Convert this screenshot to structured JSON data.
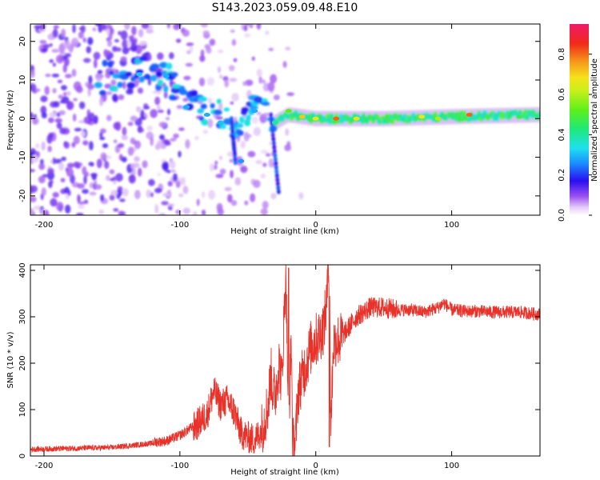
{
  "title": "S143.2023.059.09.48.E10",
  "chart_data": [
    {
      "type": "heatmap",
      "xlabel": "Height of straight line (km)",
      "ylabel": "Frequency (Hz)",
      "xlim": [
        -210,
        165
      ],
      "ylim": [
        -25,
        24.5
      ],
      "xticks": [
        -200,
        -100,
        0,
        100
      ],
      "yticks": [
        -20,
        -10,
        0,
        10,
        20
      ],
      "colorbar": {
        "label": "Normalized spectral amplitude",
        "range": [
          0,
          0.95
        ],
        "ticks": [
          0.0,
          0.2,
          0.4,
          0.6,
          0.8
        ]
      },
      "ridge": [
        {
          "x": -150,
          "freq": 11
        },
        {
          "x": -130,
          "freq": 12
        },
        {
          "x": -110,
          "freq": 11
        },
        {
          "x": -100,
          "freq": 6
        },
        {
          "x": -90,
          "freq": 3
        },
        {
          "x": -75,
          "freq": 1
        },
        {
          "x": -60,
          "freq": -1
        },
        {
          "x": -45,
          "freq": 2
        },
        {
          "x": -30,
          "freq": -1
        },
        {
          "x": -20,
          "freq": 1
        },
        {
          "x": 0,
          "freq": 0
        },
        {
          "x": 50,
          "freq": 0
        },
        {
          "x": 100,
          "freq": 0.5
        },
        {
          "x": 165,
          "freq": 1
        }
      ]
    },
    {
      "type": "line",
      "xlabel": "Height of straight line (km)",
      "ylabel": "SNR (10 * v/v)",
      "xlim": [
        -210,
        165
      ],
      "ylim": [
        0,
        412
      ],
      "xticks": [
        -200,
        -100,
        0,
        100
      ],
      "yticks": [
        0,
        100,
        200,
        300,
        400
      ],
      "series": [
        {
          "color": "#e8322a",
          "x": [
            -210,
            -180,
            -150,
            -130,
            -110,
            -100,
            -90,
            -80,
            -75,
            -70,
            -65,
            -60,
            -55,
            -50,
            -45,
            -40,
            -35,
            -33,
            -32,
            -30,
            -27,
            -25,
            -22,
            -20,
            -18,
            -17,
            -15,
            -13,
            -10,
            -7,
            -5,
            -3,
            0,
            3,
            6,
            8,
            10,
            11,
            13,
            15,
            18,
            20,
            25,
            30,
            35,
            40,
            45,
            50,
            60,
            70,
            80,
            90,
            94,
            100,
            110,
            120,
            130,
            140,
            150,
            165
          ],
          "y": [
            12,
            14,
            16,
            22,
            28,
            40,
            60,
            90,
            140,
            110,
            120,
            95,
            50,
            40,
            35,
            55,
            110,
            180,
            150,
            130,
            200,
            160,
            405,
            60,
            260,
            25,
            30,
            140,
            170,
            200,
            220,
            240,
            250,
            260,
            280,
            330,
            410,
            60,
            240,
            250,
            250,
            260,
            280,
            300,
            310,
            320,
            320,
            320,
            315,
            315,
            310,
            320,
            330,
            315,
            312,
            312,
            310,
            310,
            310,
            305
          ]
        }
      ]
    }
  ]
}
